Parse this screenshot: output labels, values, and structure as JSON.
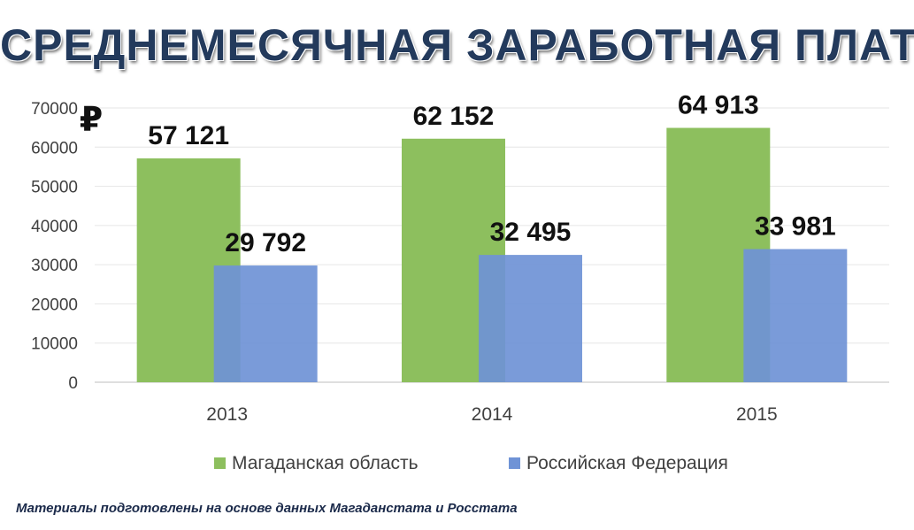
{
  "chart_data": {
    "type": "bar",
    "title": "СРЕДНЕМЕСЯЧНАЯ ЗАРАБОТНАЯ ПЛАТА",
    "unit_symbol": "₽",
    "categories": [
      "2013",
      "2014",
      "2015"
    ],
    "series": [
      {
        "name": "Магаданская область",
        "color": "#8dbf5e",
        "values": [
          57121,
          62152,
          64913
        ],
        "labels": [
          "57 121",
          "62 152",
          "64 913"
        ]
      },
      {
        "name": "Российская Федерация",
        "color": "#6f93d6",
        "values": [
          29792,
          32495,
          33981
        ],
        "labels": [
          "29 792",
          "32 495",
          "33 981"
        ]
      }
    ],
    "ylim": [
      0,
      70000
    ],
    "yticks": [
      "0",
      "10000",
      "20000",
      "30000",
      "40000",
      "50000",
      "60000",
      "70000"
    ],
    "grid": true,
    "legend_position": "bottom"
  },
  "footnote": "Материалы подготовлены на основе данных Магаданстата и Росстата"
}
